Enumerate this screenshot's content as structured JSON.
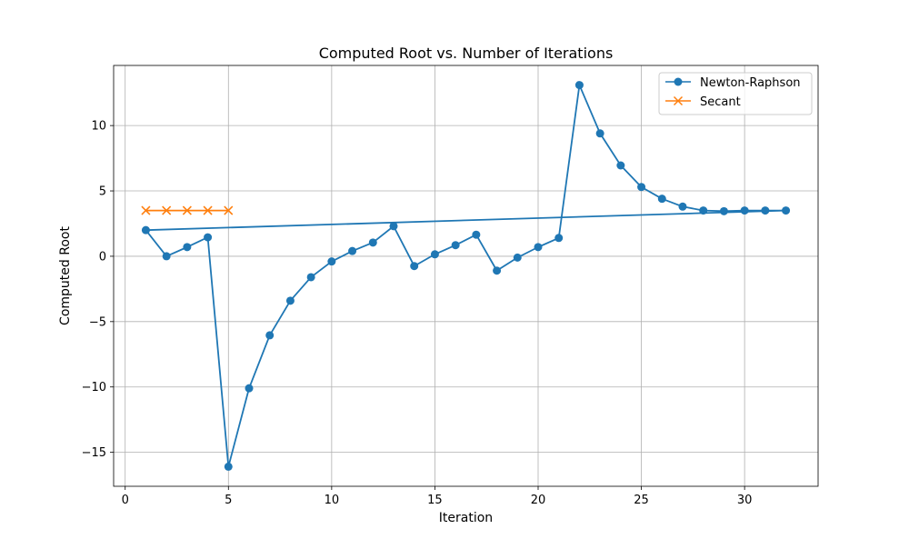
{
  "chart_data": {
    "type": "line",
    "title": "Computed Root vs. Number of Iterations",
    "xlabel": "Iteration",
    "ylabel": "Computed Root",
    "xlim": [
      -0.56,
      33.56
    ],
    "ylim": [
      -17.6,
      14.6
    ],
    "xticks": [
      0,
      5,
      10,
      15,
      20,
      25,
      30
    ],
    "yticks": [
      -15,
      -10,
      -5,
      0,
      5,
      10
    ],
    "grid": true,
    "legend_position": "top-right",
    "colors": {
      "newton": "#1f77b4",
      "secant": "#ff7f0e"
    },
    "series": [
      {
        "name": "Newton-Raphson",
        "marker": "circle",
        "x": [
          1,
          2,
          3,
          4,
          5,
          6,
          7,
          8,
          9,
          10,
          11,
          12,
          13,
          14,
          15,
          16,
          17,
          18,
          19,
          20,
          21,
          22,
          23,
          24,
          25,
          26,
          27,
          28,
          29,
          30,
          31,
          32
        ],
        "y": [
          2.0,
          0.0,
          0.7,
          1.45,
          -16.1,
          -10.1,
          -6.05,
          -3.4,
          -1.6,
          -0.4,
          0.4,
          1.05,
          2.3,
          -0.75,
          0.15,
          0.85,
          1.65,
          -1.1,
          -0.1,
          0.7,
          1.4,
          13.1,
          9.4,
          6.95,
          5.3,
          4.4,
          3.8,
          3.5,
          3.45,
          3.5,
          3.5,
          3.5
        ]
      },
      {
        "name": "Secant",
        "marker": "x",
        "x": [
          1,
          2,
          3,
          4,
          5
        ],
        "y": [
          3.5,
          3.5,
          3.5,
          3.5,
          3.5
        ]
      }
    ]
  }
}
